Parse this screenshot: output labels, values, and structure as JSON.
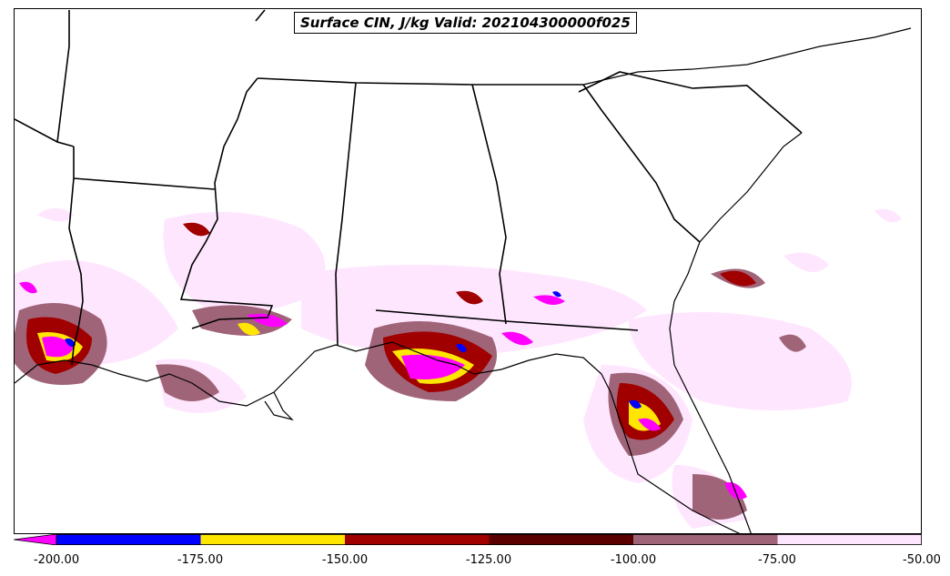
{
  "title": "Surface CIN, J/kg Valid: 202104300000f025",
  "colorbar": {
    "bins": [
      {
        "from": -200,
        "to": -175,
        "color": "#0000ff"
      },
      {
        "from": -175,
        "to": -150,
        "color": "#ffe600"
      },
      {
        "from": -150,
        "to": -125,
        "color": "#a00000"
      },
      {
        "from": -125,
        "to": -100,
        "color": "#5a0000"
      },
      {
        "from": -100,
        "to": -75,
        "color": "#a06478"
      },
      {
        "from": -75,
        "to": -50,
        "color": "#ffe6ff"
      }
    ],
    "extend_min_color": "#ff00ff",
    "tick_labels": [
      "-200.00",
      "-175.00",
      "-150.00",
      "-125.00",
      "-100.00",
      "-75.00",
      "-50.00"
    ]
  },
  "colors": {
    "magenta": "#ff00ff",
    "blue": "#0000ff",
    "yellow": "#ffe600",
    "red": "#a00000",
    "darkred": "#5a0000",
    "mauve": "#a06478",
    "pink": "#ffe6ff",
    "boundary": "#000000"
  }
}
